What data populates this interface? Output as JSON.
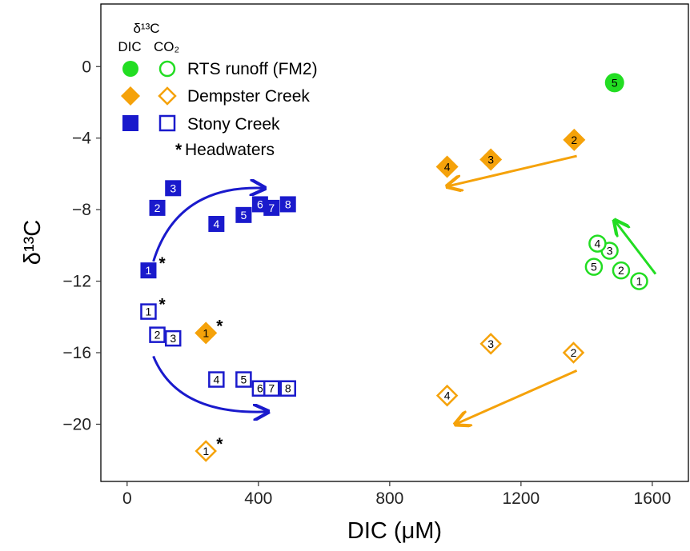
{
  "chart_data": {
    "type": "scatter",
    "title": "",
    "xlabel": "DIC (μM)",
    "ylabel": "δ¹³C",
    "xlim": [
      -80,
      1710
    ],
    "ylim": [
      -23.2,
      3.5
    ],
    "xticks": [
      0,
      400,
      800,
      1200,
      1600
    ],
    "yticks": [
      0,
      -4,
      -8,
      -12,
      -16,
      -20
    ],
    "xtick_labels": [
      "0",
      "400",
      "800",
      "1200",
      "1600"
    ],
    "ytick_labels": [
      "0",
      "−4",
      "−8",
      "−12",
      "−16",
      "−20"
    ],
    "grid": false,
    "legend_position": "top-left",
    "legend": {
      "header_line1": "δ¹³C",
      "header_dic": "DIC",
      "header_co2": "CO₂",
      "entries": [
        "RTS runoff (FM2)",
        "Dempster Creek",
        "Stony Creek"
      ],
      "headwaters_label": "Headwaters",
      "headwaters_marker": "*"
    },
    "colors": {
      "rts": "#22dd22",
      "dempster": "#f5a20a",
      "stony": "#1a1acc"
    },
    "series": [
      {
        "name": "RTS runoff (FM2)",
        "kind": "DIC",
        "shape": "circle",
        "filled": true,
        "color": "#22dd22",
        "points": [
          {
            "x": 1485,
            "y": -0.9,
            "label": "5"
          }
        ]
      },
      {
        "name": "RTS runoff (FM2)",
        "kind": "CO2",
        "shape": "circle",
        "filled": false,
        "color": "#22dd22",
        "points": [
          {
            "x": 1560,
            "y": -12.0,
            "label": "1"
          },
          {
            "x": 1505,
            "y": -11.4,
            "label": "2"
          },
          {
            "x": 1470,
            "y": -10.3,
            "label": "3"
          },
          {
            "x": 1433,
            "y": -9.9,
            "label": "4"
          },
          {
            "x": 1422,
            "y": -11.2,
            "label": "5"
          }
        ]
      },
      {
        "name": "Dempster Creek",
        "kind": "DIC",
        "shape": "diamond",
        "filled": true,
        "color": "#f5a20a",
        "points": [
          {
            "x": 240,
            "y": -14.9,
            "label": "1",
            "headwaters": true
          },
          {
            "x": 1108,
            "y": -5.2,
            "label": "3"
          },
          {
            "x": 975,
            "y": -5.6,
            "label": "4"
          },
          {
            "x": 1362,
            "y": -4.1,
            "label": "2"
          }
        ]
      },
      {
        "name": "Dempster Creek",
        "kind": "CO2",
        "shape": "diamond",
        "filled": false,
        "color": "#f5a20a",
        "points": [
          {
            "x": 240,
            "y": -21.5,
            "label": "1",
            "headwaters": true
          },
          {
            "x": 1360,
            "y": -16.0,
            "label": "2"
          },
          {
            "x": 1108,
            "y": -15.5,
            "label": "3"
          },
          {
            "x": 975,
            "y": -18.4,
            "label": "4"
          }
        ]
      },
      {
        "name": "Stony Creek",
        "kind": "DIC",
        "shape": "square",
        "filled": true,
        "color": "#1a1acc",
        "points": [
          {
            "x": 65,
            "y": -11.4,
            "label": "1",
            "headwaters": true
          },
          {
            "x": 92,
            "y": -7.9,
            "label": "2"
          },
          {
            "x": 140,
            "y": -6.8,
            "label": "3"
          },
          {
            "x": 272,
            "y": -8.8,
            "label": "4"
          },
          {
            "x": 355,
            "y": -8.3,
            "label": "5"
          },
          {
            "x": 405,
            "y": -7.7,
            "label": "6"
          },
          {
            "x": 440,
            "y": -7.9,
            "label": "7"
          },
          {
            "x": 490,
            "y": -7.7,
            "label": "8"
          }
        ]
      },
      {
        "name": "Stony Creek",
        "kind": "CO2",
        "shape": "square",
        "filled": false,
        "color": "#1a1acc",
        "points": [
          {
            "x": 65,
            "y": -13.7,
            "label": "1",
            "headwaters": true
          },
          {
            "x": 92,
            "y": -15.0,
            "label": "2"
          },
          {
            "x": 140,
            "y": -15.2,
            "label": "3"
          },
          {
            "x": 272,
            "y": -17.5,
            "label": "4"
          },
          {
            "x": 355,
            "y": -17.5,
            "label": "5"
          },
          {
            "x": 405,
            "y": -18.0,
            "label": "6"
          },
          {
            "x": 440,
            "y": -18.0,
            "label": "7"
          },
          {
            "x": 490,
            "y": -18.0,
            "label": "8"
          }
        ]
      }
    ],
    "arrows": [
      {
        "color": "#1a1acc",
        "from": [
          80,
          -10.9
        ],
        "to": [
          420,
          -6.8
        ],
        "curve": "up"
      },
      {
        "color": "#1a1acc",
        "from": [
          80,
          -16.2
        ],
        "to": [
          430,
          -19.3
        ],
        "curve": "down"
      },
      {
        "color": "#f5a20a",
        "from": [
          1370,
          -5.0
        ],
        "to": [
          975,
          -6.7
        ],
        "curve": "none"
      },
      {
        "color": "#f5a20a",
        "from": [
          1370,
          -17.0
        ],
        "to": [
          1000,
          -20.0
        ],
        "curve": "none"
      },
      {
        "color": "#22dd22",
        "from": [
          1610,
          -11.6
        ],
        "to": [
          1485,
          -8.6
        ],
        "curve": "none"
      }
    ]
  }
}
